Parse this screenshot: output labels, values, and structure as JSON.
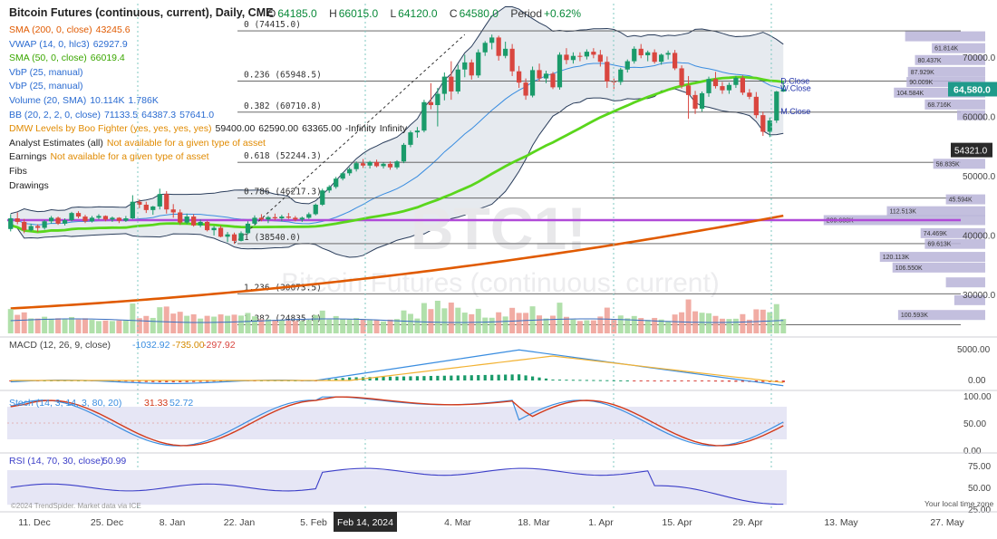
{
  "header": {
    "title": "Bitcoin Futures (continuous, current), Daily, CME",
    "open_label": "O",
    "open": "64185.0",
    "high_label": "H",
    "high": "66015.0",
    "low_label": "L",
    "low": "64120.0",
    "close_label": "C",
    "close": "64580.0",
    "period_label": "Period",
    "period": "+0.62%"
  },
  "legend": [
    {
      "name": "SMA (200, 0, close)",
      "values": [
        "43245.6"
      ],
      "color": "#e05a00"
    },
    {
      "name": "VWAP (14, 0, hlc3)",
      "values": [
        "62927.9"
      ],
      "color": "#2a6bd1"
    },
    {
      "name": "SMA (50, 0, close)",
      "values": [
        "66019.4"
      ],
      "color": "#3aa600"
    },
    {
      "name": "VbP (25, manual)",
      "values": [],
      "color": "#2a6bd1"
    },
    {
      "name": "VbP (25, manual)",
      "values": [],
      "color": "#2a6bd1"
    },
    {
      "name": "Volume (20, SMA)",
      "values": [
        "10.114K",
        "1.786K"
      ],
      "color": "#2a6bd1"
    },
    {
      "name": "BB (20, 2, 2, 0, close)",
      "values": [
        "71133.5",
        "64387.3",
        "57641.0"
      ],
      "color": "#2a6bd1"
    },
    {
      "name": "DMW Levels by Boo Fighter (yes, yes, yes, yes)",
      "values": [
        "59400.00",
        "62590.00",
        "63365.00",
        "-Infinity",
        "Infinity"
      ],
      "color": "#e08a00"
    },
    {
      "name": "Analyst Estimates (all)",
      "values": [
        "Not available for a given type of asset"
      ],
      "color": "#222"
    },
    {
      "name": "Earnings",
      "values": [
        "Not available for a given type of asset"
      ],
      "color": "#222"
    },
    {
      "name": "Fibs",
      "values": [],
      "color": "#222"
    },
    {
      "name": "Drawings",
      "values": [],
      "color": "#222"
    }
  ],
  "watermark": {
    "symbol": "BTC1!",
    "name": "Bitcoin Futures (continuous, current)"
  },
  "colors": {
    "up": "#1a9b6a",
    "down": "#d9463f",
    "sma200": "#e05a00",
    "sma50": "#5ad61c",
    "bb": "#2b3e5c",
    "vwap": "#3a8de0",
    "bbfill": "#dde3ea",
    "vbp": "#b8b4d8",
    "purple": "#b04ad8",
    "macd": "#3a8de0",
    "signal": "#f2b233",
    "stochk": "#3a8de0",
    "stochd": "#d33a1a",
    "rsi": "#3b3ec8"
  },
  "chart_data": {
    "type": "candlestick",
    "price_axis": {
      "ticks": [
        "70000.0",
        "60000.0",
        "50000.0",
        "40000.0",
        "30000.0"
      ],
      "last_price": "64,580.0",
      "marker_price": "54321.0"
    },
    "x_axis_labels": [
      "11. Dec",
      "25. Dec",
      "8. Jan",
      "22. Jan",
      "5. Feb",
      "Feb 14, 2024",
      "4. Mar",
      "18. Mar",
      "1. Apr",
      "15. Apr",
      "29. Apr",
      "13. May",
      "27. May"
    ],
    "fib_levels": [
      {
        "label": "0 (74415.0)",
        "price": 74415
      },
      {
        "label": "0.236 (65948.5)",
        "price": 65948.5
      },
      {
        "label": "0.382 (60710.8)",
        "price": 60710.8
      },
      {
        "label": "0.618 (52244.3)",
        "price": 52244.3
      },
      {
        "label": "0.786 (46217.3)",
        "price": 46217.3
      },
      {
        "label": "1 (38540.0)",
        "price": 38540
      },
      {
        "label": "1.236 (30073.5)",
        "price": 30073.5
      },
      {
        "label": "1.382 (24835.8)",
        "price": 24835.8
      }
    ],
    "line_tags": [
      "D.Close",
      "W.Close",
      "M.Close"
    ],
    "vbp": [
      {
        "price": 73500,
        "label": "",
        "vol": 0.57
      },
      {
        "price": 71500,
        "label": "61.814K",
        "vol": 0.38
      },
      {
        "price": 69500,
        "label": "80.437K",
        "vol": 0.5
      },
      {
        "price": 67500,
        "label": "87.929K",
        "vol": 0.55
      },
      {
        "price": 65800,
        "label": "90.009K",
        "vol": 0.56
      },
      {
        "price": 64000,
        "label": "104.584K",
        "vol": 0.65
      },
      {
        "price": 62000,
        "label": "68.716K",
        "vol": 0.43
      },
      {
        "price": 60200,
        "label": "",
        "vol": 0.2
      },
      {
        "price": 52000,
        "label": "56.835K",
        "vol": 0.37
      },
      {
        "price": 46000,
        "label": "45.594K",
        "vol": 0.28
      },
      {
        "price": 44000,
        "label": "112.513K",
        "vol": 0.7
      },
      {
        "price": 42500,
        "label": "209.638K",
        "vol": 1.15
      },
      {
        "price": 40300,
        "label": "74.469K",
        "vol": 0.46
      },
      {
        "price": 38500,
        "label": "69.613K",
        "vol": 0.43
      },
      {
        "price": 36300,
        "label": "120.113K",
        "vol": 0.75
      },
      {
        "price": 34500,
        "label": "106.550K",
        "vol": 0.66
      },
      {
        "price": 32000,
        "label": "",
        "vol": 0.28
      },
      {
        "price": 29000,
        "label": "",
        "vol": 0.22
      },
      {
        "price": 26500,
        "label": "100.593K",
        "vol": 0.62
      }
    ],
    "candles": [
      [
        41000,
        43500,
        40600,
        42800
      ],
      [
        42800,
        43800,
        41800,
        42200
      ],
      [
        42200,
        42700,
        40300,
        40800
      ],
      [
        40800,
        41900,
        40600,
        41500
      ],
      [
        41500,
        41800,
        40500,
        41200
      ],
      [
        41200,
        42500,
        40900,
        42300
      ],
      [
        42300,
        43200,
        41900,
        42900
      ],
      [
        42900,
        43100,
        41700,
        41900
      ],
      [
        41900,
        42800,
        41600,
        42500
      ],
      [
        42500,
        43900,
        42300,
        43700
      ],
      [
        43700,
        44000,
        42800,
        43100
      ],
      [
        43100,
        43400,
        42000,
        42300
      ],
      [
        42300,
        43200,
        42100,
        42900
      ],
      [
        42900,
        43500,
        42600,
        43200
      ],
      [
        43200,
        43300,
        42300,
        42600
      ],
      [
        42600,
        43100,
        42200,
        42900
      ],
      [
        42900,
        43000,
        42000,
        42400
      ],
      [
        42400,
        43200,
        42200,
        42800
      ],
      [
        42800,
        46700,
        42700,
        45600
      ],
      [
        45600,
        46000,
        44500,
        45100
      ],
      [
        45100,
        45600,
        43700,
        44200
      ],
      [
        44200,
        44900,
        43400,
        44800
      ],
      [
        44800,
        47800,
        44300,
        46900
      ],
      [
        46900,
        47400,
        43600,
        44300
      ],
      [
        44300,
        45200,
        42900,
        43800
      ],
      [
        43800,
        44300,
        41700,
        42100
      ],
      [
        42100,
        43600,
        41800,
        43100
      ],
      [
        43100,
        43500,
        41400,
        41600
      ],
      [
        41600,
        42600,
        41300,
        42200
      ],
      [
        42200,
        42400,
        40600,
        40800
      ],
      [
        40800,
        41500,
        39900,
        41200
      ],
      [
        41200,
        41600,
        39600,
        39700
      ],
      [
        39700,
        40500,
        38800,
        40100
      ],
      [
        40100,
        40400,
        38500,
        39000
      ],
      [
        39000,
        40600,
        38900,
        40300
      ],
      [
        40300,
        42300,
        40100,
        41900
      ],
      [
        41900,
        43300,
        41600,
        42900
      ],
      [
        42900,
        43500,
        42300,
        42600
      ],
      [
        42600,
        43200,
        42000,
        43000
      ],
      [
        43000,
        43600,
        42500,
        42800
      ],
      [
        42800,
        43400,
        42300,
        43100
      ],
      [
        43100,
        43700,
        42700,
        42900
      ],
      [
        42900,
        43200,
        42300,
        42600
      ],
      [
        42600,
        43100,
        42200,
        42900
      ],
      [
        42900,
        43800,
        42700,
        43500
      ],
      [
        43500,
        45300,
        43300,
        45100
      ],
      [
        45100,
        47800,
        44900,
        47500
      ],
      [
        47500,
        48400,
        47100,
        48100
      ],
      [
        48100,
        49800,
        47800,
        49500
      ],
      [
        49500,
        50600,
        49200,
        50400
      ],
      [
        50400,
        51400,
        50000,
        51100
      ],
      [
        51100,
        52400,
        50700,
        52100
      ],
      [
        52100,
        52800,
        51300,
        51700
      ],
      [
        51700,
        52500,
        51200,
        52300
      ],
      [
        52300,
        52700,
        51400,
        51600
      ],
      [
        51600,
        52200,
        51200,
        52000
      ],
      [
        52000,
        52400,
        51000,
        51400
      ],
      [
        51400,
        52600,
        51100,
        52400
      ],
      [
        52400,
        55500,
        52100,
        55200
      ],
      [
        55200,
        57600,
        54800,
        57300
      ],
      [
        57300,
        58200,
        56400,
        57600
      ],
      [
        57600,
        62800,
        57300,
        62400
      ],
      [
        62400,
        65600,
        61200,
        61900
      ],
      [
        61900,
        64800,
        58300,
        63800
      ],
      [
        63800,
        67400,
        62700,
        66700
      ],
      [
        66700,
        69300,
        62800,
        64200
      ],
      [
        64200,
        68700,
        63800,
        67900
      ],
      [
        67900,
        70400,
        66600,
        69100
      ],
      [
        69100,
        69600,
        66200,
        66900
      ],
      [
        66900,
        71300,
        66500,
        70800
      ],
      [
        70800,
        72700,
        70200,
        72400
      ],
      [
        72400,
        73800,
        71300,
        73300
      ],
      [
        73300,
        73600,
        69400,
        70200
      ],
      [
        70200,
        72600,
        69800,
        71400
      ],
      [
        71400,
        72200,
        66800,
        67600
      ],
      [
        67600,
        68500,
        64800,
        65700
      ],
      [
        65700,
        66400,
        62800,
        63500
      ],
      [
        63500,
        68400,
        63200,
        67800
      ],
      [
        67800,
        68900,
        65900,
        66400
      ],
      [
        66400,
        67700,
        65600,
        67200
      ],
      [
        67200,
        67500,
        64600,
        64900
      ],
      [
        64900,
        70800,
        64500,
        70400
      ],
      [
        70400,
        71500,
        68800,
        69500
      ],
      [
        69500,
        70800,
        68900,
        70200
      ],
      [
        70200,
        70800,
        69300,
        70100
      ],
      [
        70100,
        71300,
        69600,
        70900
      ],
      [
        70900,
        71500,
        69800,
        70400
      ],
      [
        70400,
        71200,
        68400,
        69200
      ],
      [
        69200,
        70100,
        64800,
        65900
      ],
      [
        65900,
        66400,
        64600,
        65800
      ],
      [
        65800,
        68200,
        65300,
        67900
      ],
      [
        67900,
        69600,
        67400,
        69300
      ],
      [
        69300,
        71800,
        68900,
        71400
      ],
      [
        71400,
        72200,
        69800,
        70300
      ],
      [
        70300,
        71100,
        69300,
        70800
      ],
      [
        70800,
        71300,
        68900,
        69200
      ],
      [
        69200,
        70600,
        68700,
        70400
      ],
      [
        70400,
        71100,
        69600,
        70700
      ],
      [
        70700,
        71200,
        67800,
        68100
      ],
      [
        68100,
        68600,
        64700,
        65200
      ],
      [
        65200,
        66800,
        59600,
        63600
      ],
      [
        63600,
        64300,
        60400,
        61300
      ],
      [
        61300,
        64200,
        60800,
        63900
      ],
      [
        63900,
        66700,
        63300,
        66300
      ],
      [
        66300,
        67500,
        64700,
        65100
      ],
      [
        65100,
        65800,
        63800,
        64400
      ],
      [
        64400,
        65700,
        63800,
        65300
      ],
      [
        65300,
        66800,
        64800,
        66500
      ],
      [
        66500,
        66900,
        63600,
        64000
      ],
      [
        64000,
        64600,
        62900,
        63300
      ],
      [
        63300,
        64100,
        59700,
        60200
      ],
      [
        60200,
        60800,
        56700,
        57400
      ],
      [
        57400,
        59800,
        56500,
        59300
      ],
      [
        59300,
        64300,
        58900,
        64185
      ],
      [
        64185,
        66015,
        64120,
        64580
      ]
    ],
    "sma200_range": [
      27600,
      43245.6
    ],
    "macd": {
      "label": "MACD (12, 26, 9, close)",
      "values": [
        "-1032.92",
        "-735.00",
        "-297.92"
      ],
      "ticks": [
        "5000.00",
        "0.00"
      ]
    },
    "stoch": {
      "label": "Stoch (14, 3, 14, 3, 80, 20)",
      "values": [
        "31.33",
        "52.72"
      ],
      "ticks": [
        "100.00",
        "50.00",
        "0.00"
      ]
    },
    "rsi": {
      "label": "RSI (14, 70, 30, close)",
      "values": [
        "50.99"
      ],
      "ticks": [
        "75.00",
        "50.00",
        "25.00"
      ]
    }
  },
  "footer": {
    "copyright": "©2024 TrendSpider. Market data via ICE",
    "timezone": "Your local time zone",
    "crosshair_date": "Feb 14, 2024"
  }
}
